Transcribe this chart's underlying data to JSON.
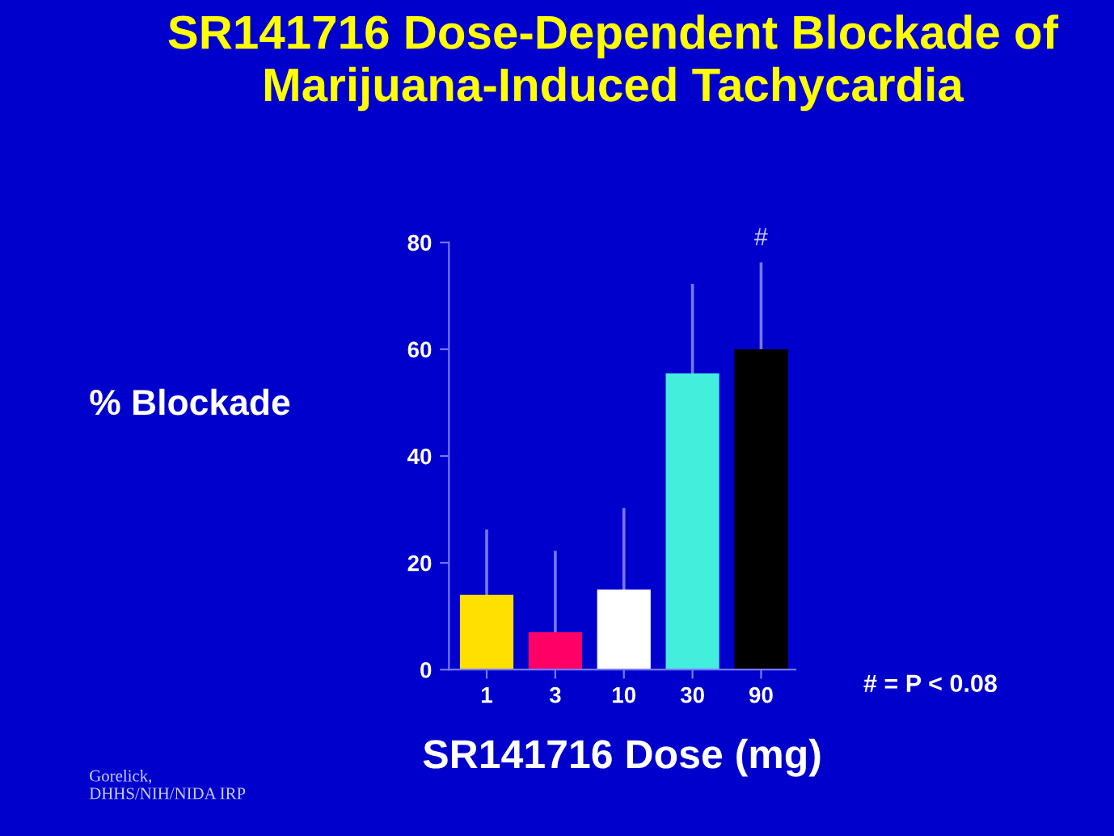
{
  "chart_data": {
    "type": "bar",
    "title": "SR141716 Dose-Dependent Blockade of\nMarijuana-Induced Tachycardia",
    "xlabel": "SR141716 Dose (mg)",
    "ylabel": "% Blockade",
    "categories": [
      "1",
      "3",
      "10",
      "30",
      "90"
    ],
    "values": [
      14,
      7,
      15,
      55.5,
      60
    ],
    "colors": [
      "#ffe000",
      "#ff0066",
      "#ffffff",
      "#44eedd",
      "#000000"
    ],
    "errors": [
      [
        14,
        26
      ],
      [
        7,
        22
      ],
      [
        15,
        30
      ],
      [
        55.5,
        72
      ],
      [
        60,
        76
      ]
    ],
    "ylim": [
      0,
      80
    ],
    "yticks": [
      0,
      20,
      40,
      60,
      80
    ],
    "grid": false,
    "legend": false,
    "annotations": [
      {
        "text": "#",
        "x": "90",
        "y": 76
      },
      "# = P < 0.08",
      "Gorelick,\nDHHS/NIH/NIDA IRP"
    ]
  }
}
